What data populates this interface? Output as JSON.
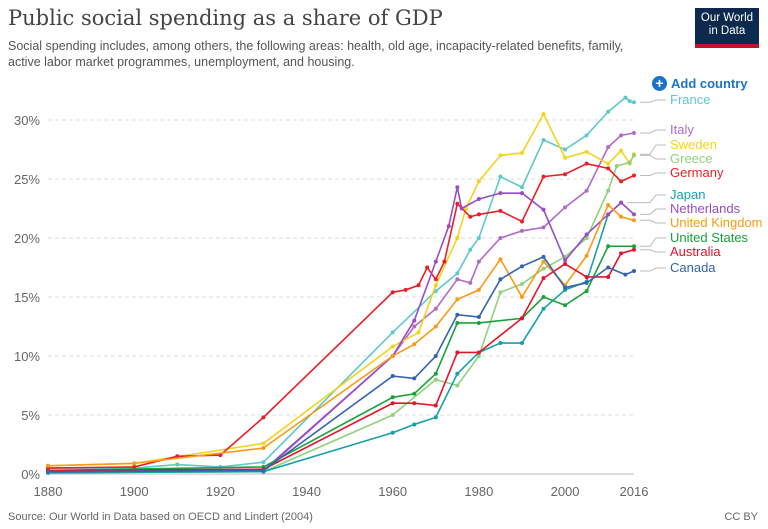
{
  "header": {
    "title": "Public social spending as a share of GDP",
    "subtitle": "Social spending includes, among others, the following areas: health, old age, incapacity-related benefits, family, active labor market programmes, unemployment, and housing.",
    "logo": "Our World in Data",
    "add_country": "Add country"
  },
  "footer": {
    "source": "Source: Our World in Data based on OECD and Lindert (2004)",
    "license": "CC BY"
  },
  "chart_data": {
    "type": "line",
    "title": "Public social spending as a share of GDP",
    "xlabel": "",
    "ylabel": "",
    "xlim": [
      1880,
      2016
    ],
    "ylim": [
      0,
      31
    ],
    "x_ticks": [
      "1880",
      "1900",
      "1920",
      "1940",
      "1960",
      "1980",
      "2000",
      "2016"
    ],
    "y_ticks": [
      "0%",
      "5%",
      "10%",
      "15%",
      "20%",
      "25%",
      "30%"
    ],
    "legend": "right",
    "series": [
      {
        "name": "France",
        "color": "#5ec8cc",
        "points": [
          [
            1880,
            0.5
          ],
          [
            1900,
            0.5
          ],
          [
            1910,
            0.8
          ],
          [
            1920,
            0.6
          ],
          [
            1930,
            1.0
          ],
          [
            1960,
            12
          ],
          [
            1970,
            15.5
          ],
          [
            1975,
            17
          ],
          [
            1978,
            19
          ],
          [
            1980,
            20
          ],
          [
            1985,
            25.2
          ],
          [
            1990,
            24.3
          ],
          [
            1995,
            28.3
          ],
          [
            2000,
            27.5
          ],
          [
            2005,
            28.7
          ],
          [
            2010,
            30.7
          ],
          [
            2014,
            31.9
          ],
          [
            2015,
            31.6
          ],
          [
            2016,
            31.5
          ]
        ]
      },
      {
        "name": "Italy",
        "color": "#b16ac9",
        "points": [
          [
            1880,
            0.2
          ],
          [
            1930,
            0.2
          ],
          [
            1960,
            10
          ],
          [
            1965,
            12.5
          ],
          [
            1970,
            14
          ],
          [
            1975,
            16.5
          ],
          [
            1978,
            16.2
          ],
          [
            1980,
            18
          ],
          [
            1985,
            20
          ],
          [
            1990,
            20.6
          ],
          [
            1995,
            20.9
          ],
          [
            2000,
            22.6
          ],
          [
            2005,
            24
          ],
          [
            2010,
            27.7
          ],
          [
            2013,
            28.7
          ],
          [
            2016,
            28.9
          ]
        ]
      },
      {
        "name": "Sweden",
        "color": "#f7d21b",
        "points": [
          [
            1880,
            0.7
          ],
          [
            1900,
            0.9
          ],
          [
            1930,
            2.6
          ],
          [
            1960,
            10.8
          ],
          [
            1966,
            12
          ],
          [
            1970,
            16
          ],
          [
            1975,
            20
          ],
          [
            1977,
            22.5
          ],
          [
            1980,
            24.8
          ],
          [
            1985,
            27
          ],
          [
            1990,
            27.2
          ],
          [
            1995,
            30.5
          ],
          [
            2000,
            26.8
          ],
          [
            2005,
            27.3
          ],
          [
            2010,
            26.3
          ],
          [
            2013,
            27.4
          ],
          [
            2015,
            26.3
          ],
          [
            2016,
            27.1
          ]
        ]
      },
      {
        "name": "Greece",
        "color": "#8fd27b",
        "points": [
          [
            1880,
            0.1
          ],
          [
            1930,
            0.2
          ],
          [
            1960,
            5
          ],
          [
            1970,
            8
          ],
          [
            1975,
            7.5
          ],
          [
            1980,
            10
          ],
          [
            1985,
            15.4
          ],
          [
            1990,
            16.1
          ],
          [
            1995,
            17.4
          ],
          [
            2000,
            18.4
          ],
          [
            2005,
            20
          ],
          [
            2010,
            24
          ],
          [
            2012,
            26.1
          ],
          [
            2015,
            26.4
          ],
          [
            2016,
            27
          ]
        ]
      },
      {
        "name": "Germany",
        "color": "#ea1f25",
        "points": [
          [
            1880,
            0.5
          ],
          [
            1900,
            0.6
          ],
          [
            1910,
            1.5
          ],
          [
            1920,
            1.6
          ],
          [
            1930,
            4.8
          ],
          [
            1960,
            15.4
          ],
          [
            1963,
            15.6
          ],
          [
            1966,
            16
          ],
          [
            1968,
            17.5
          ],
          [
            1970,
            16.5
          ],
          [
            1972,
            18
          ],
          [
            1975,
            22.9
          ],
          [
            1978,
            21.8
          ],
          [
            1980,
            22
          ],
          [
            1985,
            22.3
          ],
          [
            1990,
            21.4
          ],
          [
            1995,
            25.2
          ],
          [
            2000,
            25.4
          ],
          [
            2005,
            26.3
          ],
          [
            2010,
            25.9
          ],
          [
            2013,
            24.8
          ],
          [
            2016,
            25.3
          ]
        ]
      },
      {
        "name": "Japan",
        "color": "#16a1aa",
        "points": [
          [
            1880,
            0.1
          ],
          [
            1930,
            0.2
          ],
          [
            1960,
            3.5
          ],
          [
            1965,
            4.2
          ],
          [
            1970,
            4.8
          ],
          [
            1975,
            8.5
          ],
          [
            1980,
            10.3
          ],
          [
            1985,
            11.1
          ],
          [
            1990,
            11.1
          ],
          [
            1995,
            14
          ],
          [
            2000,
            15.6
          ],
          [
            2005,
            16.3
          ],
          [
            2010,
            22
          ],
          [
            2013,
            23
          ]
        ]
      },
      {
        "name": "Netherlands",
        "color": "#9a4cc6",
        "points": [
          [
            1880,
            0.2
          ],
          [
            1930,
            0.3
          ],
          [
            1960,
            10
          ],
          [
            1965,
            13
          ],
          [
            1970,
            18
          ],
          [
            1973,
            21
          ],
          [
            1975,
            24.3
          ],
          [
            1976,
            22.5
          ],
          [
            1980,
            23.3
          ],
          [
            1985,
            23.8
          ],
          [
            1990,
            23.8
          ],
          [
            1995,
            22.4
          ],
          [
            2000,
            18.1
          ],
          [
            2005,
            20.3
          ],
          [
            2010,
            22
          ],
          [
            2013,
            23
          ],
          [
            2016,
            22
          ]
        ]
      },
      {
        "name": "United Kingdom",
        "color": "#fa9a16",
        "points": [
          [
            1880,
            0.7
          ],
          [
            1900,
            0.9
          ],
          [
            1930,
            2.2
          ],
          [
            1960,
            10
          ],
          [
            1965,
            11
          ],
          [
            1970,
            12.5
          ],
          [
            1975,
            14.8
          ],
          [
            1980,
            15.6
          ],
          [
            1985,
            18.2
          ],
          [
            1990,
            15
          ],
          [
            1995,
            18
          ],
          [
            2000,
            16
          ],
          [
            2005,
            18.5
          ],
          [
            2010,
            22.8
          ],
          [
            2013,
            21.8
          ],
          [
            2016,
            21.5
          ]
        ]
      },
      {
        "name": "United States",
        "color": "#18a23a",
        "points": [
          [
            1880,
            0.3
          ],
          [
            1930,
            0.6
          ],
          [
            1960,
            6.5
          ],
          [
            1965,
            6.8
          ],
          [
            1970,
            8.5
          ],
          [
            1975,
            12.8
          ],
          [
            1980,
            12.8
          ],
          [
            1990,
            13.2
          ],
          [
            1995,
            15
          ],
          [
            2000,
            14.3
          ],
          [
            2005,
            15.5
          ],
          [
            2010,
            19.3
          ],
          [
            2016,
            19.3
          ]
        ]
      },
      {
        "name": "Australia",
        "color": "#e5142c",
        "points": [
          [
            1880,
            0.3
          ],
          [
            1930,
            0.4
          ],
          [
            1960,
            6
          ],
          [
            1965,
            6
          ],
          [
            1970,
            5.8
          ],
          [
            1975,
            10.3
          ],
          [
            1980,
            10.3
          ],
          [
            1990,
            13.2
          ],
          [
            1995,
            16.6
          ],
          [
            2000,
            17.8
          ],
          [
            2005,
            16.7
          ],
          [
            2010,
            16.7
          ],
          [
            2013,
            18.7
          ],
          [
            2016,
            19
          ]
        ]
      },
      {
        "name": "Canada",
        "color": "#3563ad",
        "points": [
          [
            1880,
            0.2
          ],
          [
            1930,
            0.3
          ],
          [
            1960,
            8.3
          ],
          [
            1965,
            8.1
          ],
          [
            1970,
            10
          ],
          [
            1975,
            13.5
          ],
          [
            1980,
            13.3
          ],
          [
            1985,
            16.5
          ],
          [
            1990,
            17.6
          ],
          [
            1995,
            18.4
          ],
          [
            2000,
            15.8
          ],
          [
            2005,
            16.2
          ],
          [
            2010,
            17.5
          ],
          [
            2014,
            16.9
          ],
          [
            2016,
            17.2
          ]
        ]
      }
    ]
  }
}
